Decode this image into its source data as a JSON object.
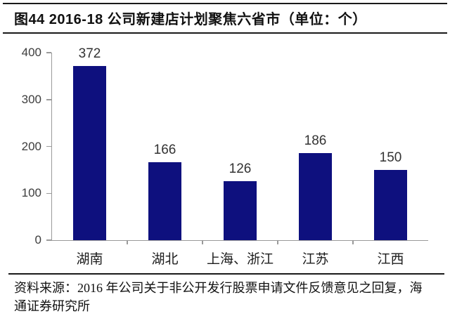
{
  "title": "图44 2016-18 公司新建店计划聚焦六省市（单位：个）",
  "source": {
    "line1": "资料来源：2016 年公司关于非公开发行股票申请文件反馈意见之回复，海",
    "line2": "通证券研究所"
  },
  "colors": {
    "bar": "#0e107e",
    "axis": "#9a9a9a",
    "value_label": "#333333",
    "tick_label": "#3d3d3d",
    "rule": "#1a1a1a"
  },
  "chart_data": {
    "type": "bar",
    "categories": [
      "湖南",
      "湖北",
      "上海、浙江",
      "江苏",
      "江西"
    ],
    "values": [
      372,
      166,
      126,
      186,
      150
    ],
    "title": "图44 2016-18 公司新建店计划聚焦六省市（单位：个）",
    "xlabel": "",
    "ylabel": "",
    "ylim": [
      0,
      400
    ],
    "yticks": [
      0,
      100,
      200,
      300,
      400
    ],
    "grid": false,
    "legend": "none",
    "bar_color": "#0e107e",
    "data_labels_shown": true
  }
}
